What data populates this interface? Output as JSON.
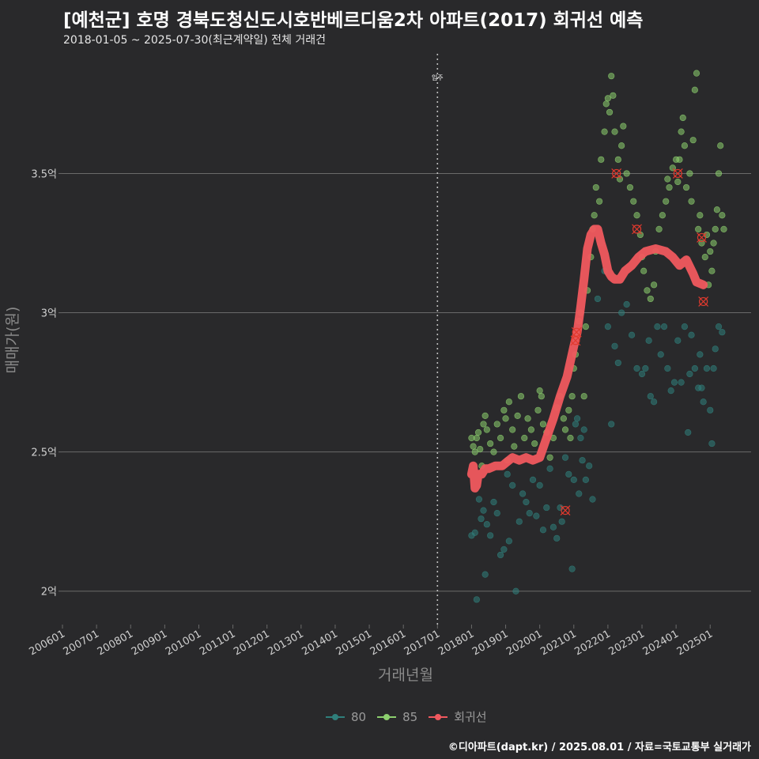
{
  "title": "[예천군] 호명 경북도청신도시호반베르디움2차 아파트(2017) 회귀선 예측",
  "subtitle": "2018-01-05 ~ 2025-07-30(최근계약일) 전체 거래건",
  "caption": "©디아파트(dapt.kr) / 2025.08.01 / 자료=국토교통부 실거래가",
  "colors": {
    "background": "#29292b",
    "grid": "#6a6a6a",
    "series_80": "#2f7f7b",
    "series_85": "#8ccf6e",
    "regression": "#f0585e",
    "outlier": "#e03a2e",
    "vline": "#bdbdbd"
  },
  "legend": {
    "items": [
      {
        "label": "80",
        "key": "series_80"
      },
      {
        "label": "85",
        "key": "series_85"
      },
      {
        "label": "회귀선",
        "key": "regression"
      }
    ]
  },
  "chart_data": {
    "type": "scatter",
    "title": "[예천군] 호명 경북도청신도시호반베르디움2차 아파트(2017) 회귀선 예측",
    "xlabel": "거래년월",
    "ylabel": "매매가(원)",
    "xlim": [
      2006.0,
      2026.2
    ],
    "ylim": [
      1.88,
      3.93
    ],
    "y_unit": "억",
    "x_ticks": [
      "200601",
      "200701",
      "200801",
      "200901",
      "201001",
      "201101",
      "201201",
      "201301",
      "201401",
      "201501",
      "201601",
      "201701",
      "201801",
      "201901",
      "202001",
      "202101",
      "202201",
      "202301",
      "202401",
      "202501"
    ],
    "y_ticks": [
      {
        "value": 2.0,
        "label": "2억"
      },
      {
        "value": 2.5,
        "label": "2.5억"
      },
      {
        "value": 3.0,
        "label": "3억"
      },
      {
        "value": 3.5,
        "label": "3.5억"
      }
    ],
    "annotations": [
      {
        "x": 2017.0,
        "label": "입주",
        "type": "vline"
      }
    ],
    "series": [
      {
        "name": "80",
        "points": [
          [
            2018.0,
            2.2
          ],
          [
            2018.1,
            2.21
          ],
          [
            2018.15,
            1.97
          ],
          [
            2018.22,
            2.33
          ],
          [
            2018.28,
            2.26
          ],
          [
            2018.35,
            2.29
          ],
          [
            2018.4,
            2.06
          ],
          [
            2018.45,
            2.24
          ],
          [
            2018.55,
            2.2
          ],
          [
            2018.65,
            2.32
          ],
          [
            2018.75,
            2.28
          ],
          [
            2018.85,
            2.13
          ],
          [
            2018.95,
            2.15
          ],
          [
            2019.05,
            2.42
          ],
          [
            2019.1,
            2.18
          ],
          [
            2019.2,
            2.38
          ],
          [
            2019.3,
            2.0
          ],
          [
            2019.4,
            2.25
          ],
          [
            2019.5,
            2.35
          ],
          [
            2019.6,
            2.32
          ],
          [
            2019.7,
            2.28
          ],
          [
            2019.8,
            2.4
          ],
          [
            2019.9,
            2.27
          ],
          [
            2020.0,
            2.38
          ],
          [
            2020.1,
            2.22
          ],
          [
            2020.2,
            2.3
          ],
          [
            2020.3,
            2.44
          ],
          [
            2020.4,
            2.23
          ],
          [
            2020.5,
            2.19
          ],
          [
            2020.6,
            2.3
          ],
          [
            2020.65,
            2.25
          ],
          [
            2020.75,
            2.48
          ],
          [
            2020.85,
            2.42
          ],
          [
            2020.95,
            2.08
          ],
          [
            2021.0,
            2.4
          ],
          [
            2021.05,
            2.6
          ],
          [
            2021.1,
            2.62
          ],
          [
            2021.15,
            2.35
          ],
          [
            2021.2,
            2.55
          ],
          [
            2021.25,
            2.47
          ],
          [
            2021.3,
            2.58
          ],
          [
            2021.35,
            2.4
          ],
          [
            2021.45,
            2.45
          ],
          [
            2021.55,
            2.33
          ],
          [
            2021.7,
            3.05
          ],
          [
            2021.8,
            3.25
          ],
          [
            2021.9,
            3.15
          ],
          [
            2022.0,
            2.95
          ],
          [
            2022.1,
            2.6
          ],
          [
            2022.2,
            2.88
          ],
          [
            2022.3,
            2.82
          ],
          [
            2022.4,
            3.0
          ],
          [
            2022.55,
            3.03
          ],
          [
            2022.7,
            2.92
          ],
          [
            2022.85,
            2.8
          ],
          [
            2023.0,
            2.78
          ],
          [
            2023.1,
            2.8
          ],
          [
            2023.2,
            2.9
          ],
          [
            2023.25,
            2.7
          ],
          [
            2023.35,
            2.68
          ],
          [
            2023.45,
            2.95
          ],
          [
            2023.55,
            2.85
          ],
          [
            2023.65,
            2.95
          ],
          [
            2023.75,
            2.8
          ],
          [
            2023.85,
            2.72
          ],
          [
            2023.95,
            2.75
          ],
          [
            2024.05,
            2.9
          ],
          [
            2024.15,
            2.75
          ],
          [
            2024.25,
            2.95
          ],
          [
            2024.35,
            2.57
          ],
          [
            2024.4,
            2.78
          ],
          [
            2024.45,
            2.92
          ],
          [
            2024.55,
            2.8
          ],
          [
            2024.65,
            2.73
          ],
          [
            2024.7,
            2.85
          ],
          [
            2024.75,
            2.73
          ],
          [
            2024.8,
            2.68
          ],
          [
            2024.9,
            2.8
          ],
          [
            2025.0,
            2.65
          ],
          [
            2025.05,
            2.53
          ],
          [
            2025.1,
            2.8
          ],
          [
            2025.15,
            2.87
          ],
          [
            2025.25,
            2.95
          ],
          [
            2025.35,
            2.93
          ]
        ]
      },
      {
        "name": "85",
        "points": [
          [
            2018.0,
            2.55
          ],
          [
            2018.05,
            2.52
          ],
          [
            2018.1,
            2.5
          ],
          [
            2018.15,
            2.55
          ],
          [
            2018.2,
            2.57
          ],
          [
            2018.25,
            2.51
          ],
          [
            2018.3,
            2.45
          ],
          [
            2018.35,
            2.6
          ],
          [
            2018.4,
            2.63
          ],
          [
            2018.45,
            2.58
          ],
          [
            2018.55,
            2.53
          ],
          [
            2018.65,
            2.5
          ],
          [
            2018.75,
            2.6
          ],
          [
            2018.85,
            2.55
          ],
          [
            2018.95,
            2.65
          ],
          [
            2019.0,
            2.62
          ],
          [
            2019.05,
            2.47
          ],
          [
            2019.1,
            2.68
          ],
          [
            2019.2,
            2.58
          ],
          [
            2019.25,
            2.52
          ],
          [
            2019.35,
            2.63
          ],
          [
            2019.45,
            2.7
          ],
          [
            2019.55,
            2.55
          ],
          [
            2019.65,
            2.62
          ],
          [
            2019.75,
            2.58
          ],
          [
            2019.85,
            2.53
          ],
          [
            2019.95,
            2.65
          ],
          [
            2020.0,
            2.72
          ],
          [
            2020.05,
            2.7
          ],
          [
            2020.1,
            2.6
          ],
          [
            2020.2,
            2.57
          ],
          [
            2020.3,
            2.48
          ],
          [
            2020.4,
            2.55
          ],
          [
            2020.5,
            2.66
          ],
          [
            2020.6,
            2.7
          ],
          [
            2020.7,
            2.62
          ],
          [
            2020.75,
            2.58
          ],
          [
            2020.85,
            2.65
          ],
          [
            2020.9,
            2.55
          ],
          [
            2020.95,
            2.7
          ],
          [
            2021.0,
            2.8
          ],
          [
            2021.05,
            2.85
          ],
          [
            2021.1,
            2.92
          ],
          [
            2021.15,
            2.97
          ],
          [
            2021.2,
            3.0
          ],
          [
            2021.3,
            2.7
          ],
          [
            2021.35,
            2.95
          ],
          [
            2021.4,
            3.08
          ],
          [
            2021.5,
            3.2
          ],
          [
            2021.55,
            3.3
          ],
          [
            2021.6,
            3.35
          ],
          [
            2021.65,
            3.45
          ],
          [
            2021.75,
            3.4
          ],
          [
            2021.8,
            3.55
          ],
          [
            2021.9,
            3.65
          ],
          [
            2021.95,
            3.75
          ],
          [
            2022.0,
            3.77
          ],
          [
            2022.05,
            3.72
          ],
          [
            2022.1,
            3.85
          ],
          [
            2022.15,
            3.78
          ],
          [
            2022.2,
            3.65
          ],
          [
            2022.3,
            3.55
          ],
          [
            2022.35,
            3.48
          ],
          [
            2022.4,
            3.6
          ],
          [
            2022.45,
            3.67
          ],
          [
            2022.55,
            3.5
          ],
          [
            2022.65,
            3.45
          ],
          [
            2022.75,
            3.4
          ],
          [
            2022.85,
            3.35
          ],
          [
            2022.95,
            3.28
          ],
          [
            2023.0,
            3.2
          ],
          [
            2023.05,
            3.15
          ],
          [
            2023.15,
            3.08
          ],
          [
            2023.25,
            3.05
          ],
          [
            2023.35,
            3.1
          ],
          [
            2023.4,
            3.22
          ],
          [
            2023.5,
            3.3
          ],
          [
            2023.6,
            3.35
          ],
          [
            2023.7,
            3.4
          ],
          [
            2023.75,
            3.48
          ],
          [
            2023.8,
            3.45
          ],
          [
            2023.9,
            3.52
          ],
          [
            2024.0,
            3.55
          ],
          [
            2024.05,
            3.47
          ],
          [
            2024.1,
            3.55
          ],
          [
            2024.15,
            3.65
          ],
          [
            2024.2,
            3.7
          ],
          [
            2024.25,
            3.6
          ],
          [
            2024.3,
            3.45
          ],
          [
            2024.4,
            3.5
          ],
          [
            2024.45,
            3.4
          ],
          [
            2024.5,
            3.62
          ],
          [
            2024.55,
            3.8
          ],
          [
            2024.6,
            3.86
          ],
          [
            2024.65,
            3.3
          ],
          [
            2024.7,
            3.35
          ],
          [
            2024.75,
            3.25
          ],
          [
            2024.85,
            3.2
          ],
          [
            2024.9,
            3.28
          ],
          [
            2024.95,
            3.1
          ],
          [
            2025.0,
            3.22
          ],
          [
            2025.05,
            3.15
          ],
          [
            2025.1,
            3.25
          ],
          [
            2025.15,
            3.3
          ],
          [
            2025.2,
            3.37
          ],
          [
            2025.25,
            3.5
          ],
          [
            2025.3,
            3.6
          ],
          [
            2025.35,
            3.35
          ],
          [
            2025.4,
            3.3
          ]
        ]
      },
      {
        "name": "회귀선",
        "points": [
          [
            2018.0,
            2.42
          ],
          [
            2018.05,
            2.45
          ],
          [
            2018.1,
            2.37
          ],
          [
            2018.15,
            2.38
          ],
          [
            2018.2,
            2.42
          ],
          [
            2018.3,
            2.42
          ],
          [
            2018.4,
            2.44
          ],
          [
            2018.5,
            2.44
          ],
          [
            2018.7,
            2.45
          ],
          [
            2018.9,
            2.45
          ],
          [
            2019.0,
            2.46
          ],
          [
            2019.2,
            2.48
          ],
          [
            2019.4,
            2.47
          ],
          [
            2019.6,
            2.48
          ],
          [
            2019.8,
            2.47
          ],
          [
            2020.0,
            2.48
          ],
          [
            2020.2,
            2.55
          ],
          [
            2020.4,
            2.62
          ],
          [
            2020.6,
            2.7
          ],
          [
            2020.8,
            2.77
          ],
          [
            2021.0,
            2.88
          ],
          [
            2021.1,
            2.93
          ],
          [
            2021.2,
            3.02
          ],
          [
            2021.3,
            3.12
          ],
          [
            2021.4,
            3.23
          ],
          [
            2021.5,
            3.28
          ],
          [
            2021.6,
            3.3
          ],
          [
            2021.7,
            3.3
          ],
          [
            2021.8,
            3.25
          ],
          [
            2021.9,
            3.21
          ],
          [
            2022.0,
            3.15
          ],
          [
            2022.1,
            3.13
          ],
          [
            2022.2,
            3.12
          ],
          [
            2022.35,
            3.12
          ],
          [
            2022.5,
            3.15
          ],
          [
            2022.7,
            3.17
          ],
          [
            2022.9,
            3.2
          ],
          [
            2023.1,
            3.22
          ],
          [
            2023.4,
            3.23
          ],
          [
            2023.7,
            3.22
          ],
          [
            2023.9,
            3.2
          ],
          [
            2024.1,
            3.17
          ],
          [
            2024.3,
            3.19
          ],
          [
            2024.5,
            3.14
          ],
          [
            2024.6,
            3.11
          ],
          [
            2024.8,
            3.1
          ]
        ]
      }
    ],
    "outliers": [
      [
        2021.05,
        2.9
      ],
      [
        2021.08,
        2.93
      ],
      [
        2020.75,
        2.29
      ],
      [
        2022.25,
        3.5
      ],
      [
        2022.85,
        3.3
      ],
      [
        2024.05,
        3.5
      ],
      [
        2024.75,
        3.27
      ],
      [
        2024.8,
        3.04
      ]
    ]
  }
}
